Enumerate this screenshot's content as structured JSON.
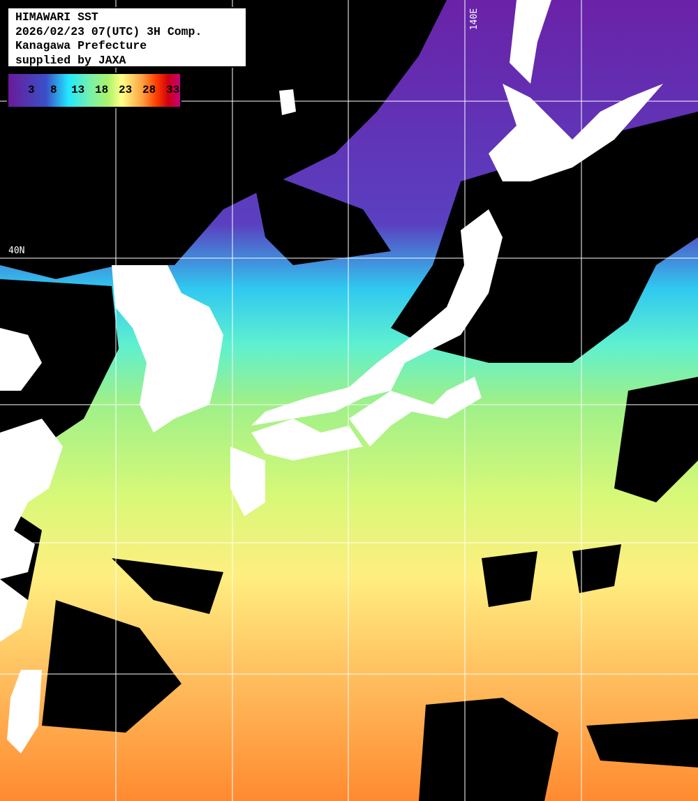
{
  "header": {
    "lines": [
      "HIMAWARI SST",
      "2026/02/23 07(UTC) 3H Comp.",
      "Kanagawa Prefecture",
      "supplied by JAXA"
    ]
  },
  "colorbar": {
    "unit_hint": "degC",
    "ticks": [
      "3",
      "8",
      "13",
      "18",
      "23",
      "28",
      "33"
    ],
    "colors": [
      "#6a1a9a",
      "#3a50c8",
      "#22e8ff",
      "#7af0a8",
      "#aaf36a",
      "#ffff88",
      "#ffa040",
      "#ff4000",
      "#d00010",
      "#c8007a"
    ]
  },
  "grid": {
    "lon_label": "140E",
    "lat_label": "40N"
  },
  "colors": {
    "land": "#ffffff",
    "cloud": "#000000",
    "grid": "#ffffff"
  }
}
